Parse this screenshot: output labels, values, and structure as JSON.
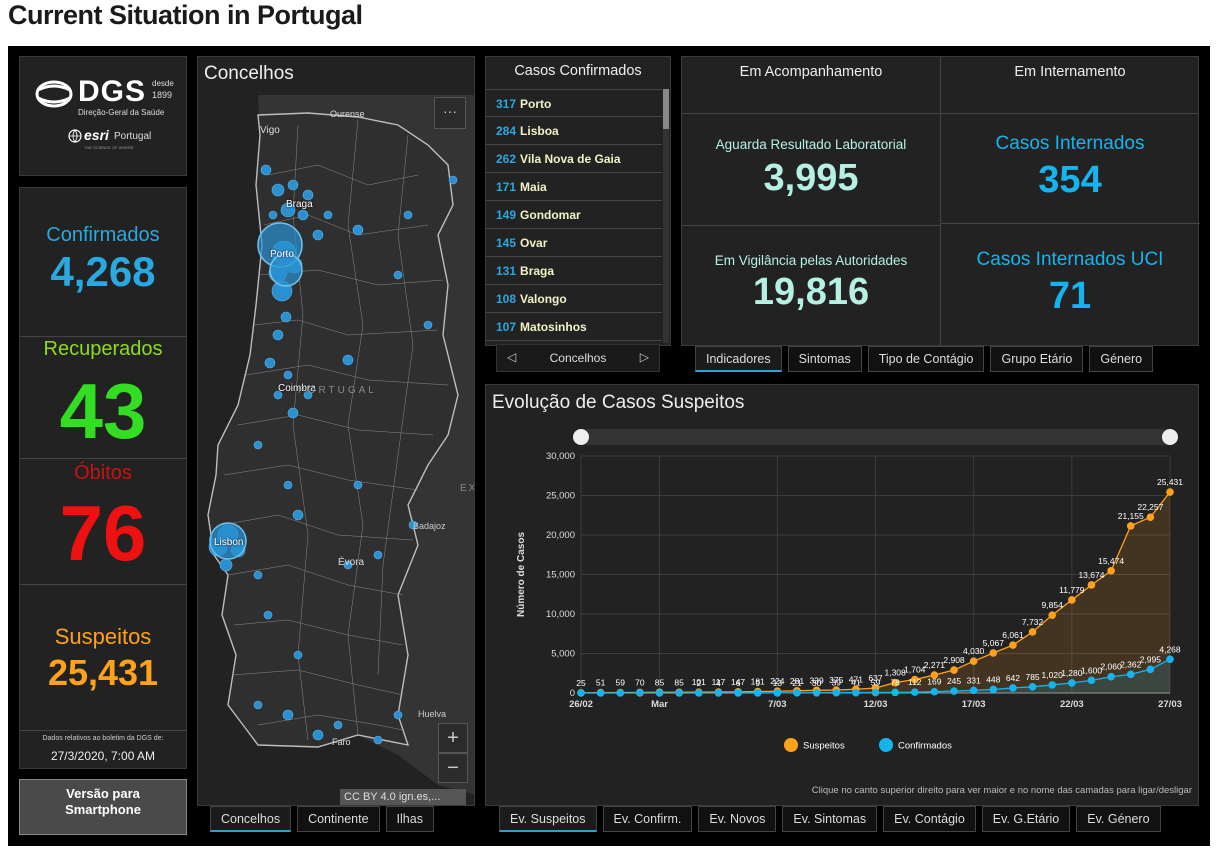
{
  "page": {
    "title": "Current Situation in Portugal"
  },
  "logo": {
    "dgs": "DGS",
    "desde": "desde",
    "year": "1899",
    "subtitle": "Direção-Geral da Saúde",
    "esri": "esri",
    "esri_region": "Portugal",
    "esri_tagline": "THE SCIENCE OF WHERE"
  },
  "left": {
    "confirmados_label": "Confirmados",
    "confirmados_value": "4,268",
    "recuperados_label": "Recuperados",
    "recuperados_value": "43",
    "obitos_label": "Óbitos",
    "obitos_value": "76",
    "suspeitos_label": "Suspeitos",
    "suspeitos_value": "25,431",
    "note": "Dados relativos ao boletim da DGS de:",
    "date": "27/3/2020, 7:00 AM",
    "smartphone_label": "Versão para Smartphone"
  },
  "colors": {
    "blue": "#2aa8e0",
    "green": "#33dd22",
    "red": "#ee1111",
    "orange": "#ffa21a",
    "teal": "#b6f0e4"
  },
  "map": {
    "title": "Concelhos",
    "more_icon": "ellipsis-icon",
    "labels": {
      "ourense": "Ourense",
      "vigo": "Vigo",
      "braga": "Braga",
      "porto": "Porto",
      "coimbra": "Coimbra",
      "portugal": "PORTUGAL",
      "ex": "EX",
      "badajoz": "Badajoz",
      "evora": "Évora",
      "lisbon": "Lisbon",
      "huelva": "Huelva",
      "faro": "Faro"
    },
    "attribution": "CC BY 4.0 ign.es,...",
    "zoom_in": "+",
    "zoom_out": "−",
    "tabs": [
      "Concelhos",
      "Continente",
      "Ilhas"
    ]
  },
  "casos": {
    "title": "Casos Confirmados",
    "items": [
      {
        "count": "317",
        "name": "Porto"
      },
      {
        "count": "284",
        "name": "Lisboa"
      },
      {
        "count": "262",
        "name": "Vila Nova de Gaia"
      },
      {
        "count": "171",
        "name": "Maia"
      },
      {
        "count": "149",
        "name": "Gondomar"
      },
      {
        "count": "145",
        "name": "Ovar"
      },
      {
        "count": "131",
        "name": "Braga"
      },
      {
        "count": "108",
        "name": "Valongo"
      },
      {
        "count": "107",
        "name": "Matosinhos"
      }
    ],
    "nav_label": "Concelhos",
    "prev": "◁",
    "next": "▷"
  },
  "indicadores": {
    "acompanhamento_title": "Em Acompanhamento",
    "internamento_title": "Em Internamento",
    "aguarda_label": "Aguarda Resultado Laboratorial",
    "aguarda_value": "3,995",
    "vigilancia_label": "Em Vigilância pelas Autoridades",
    "vigilancia_value": "19,816",
    "internados_label": "Casos Internados",
    "internados_value": "354",
    "uci_label": "Casos Internados UCI",
    "uci_value": "71",
    "tabs": [
      "Indicadores",
      "Sintomas",
      "Tipo de Contágio",
      "Grupo Etário",
      "Género"
    ]
  },
  "chart_data": {
    "type": "line",
    "title": "Evolução de Casos Suspeitos",
    "ylabel": "Número de Casos",
    "ylim": [
      0,
      30000
    ],
    "yticks": [
      0,
      5000,
      10000,
      15000,
      20000,
      25000,
      30000
    ],
    "ytick_labels": [
      "0",
      "5,000",
      "10,000",
      "15,000",
      "20,000",
      "25,000",
      "30,000"
    ],
    "x": [
      "26/02",
      "27/02",
      "28/02",
      "29/02",
      "01/03",
      "02/03",
      "03/03",
      "04/03",
      "05/03",
      "06/03",
      "07/03",
      "08/03",
      "09/03",
      "10/03",
      "11/03",
      "12/03",
      "13/03",
      "14/03",
      "15/03",
      "16/03",
      "17/03",
      "18/03",
      "19/03",
      "20/03",
      "21/03",
      "22/03",
      "23/03",
      "24/03",
      "25/03",
      "26/03",
      "27/03"
    ],
    "xtick_labels": [
      {
        "i": 0,
        "label": "26/02"
      },
      {
        "i": 4,
        "label": "Mar"
      },
      {
        "i": 10,
        "label": "7/03"
      },
      {
        "i": 15,
        "label": "12/03"
      },
      {
        "i": 20,
        "label": "17/03"
      },
      {
        "i": 25,
        "label": "22/03"
      },
      {
        "i": 30,
        "label": "27/03"
      }
    ],
    "series": [
      {
        "name": "Suspeitos",
        "color": "#ffa21a",
        "values": [
          25,
          51,
          59,
          70,
          85,
          85,
          101,
          117,
          147,
          181,
          224,
          281,
          339,
          375,
          471,
          637,
          1308,
          1704,
          2271,
          2908,
          4030,
          5067,
          6061,
          7732,
          9854,
          11779,
          13674,
          15474,
          21155,
          22257,
          25431
        ],
        "labels": [
          "25",
          "51",
          "59",
          "70",
          "85",
          "85",
          "101",
          "117",
          "147",
          "181",
          "224",
          "281",
          "339",
          "375",
          "471",
          "637",
          "1,308",
          "1,704",
          "2,271",
          "2,908",
          "4,030",
          "5,067",
          "6,061",
          "7,732",
          "9,854",
          "11,779",
          "13,674",
          "15,474",
          "21,155",
          "22,257",
          "25,431"
        ]
      },
      {
        "name": "Confirmados",
        "color": "#16b4ee",
        "values": [
          0,
          0,
          0,
          0,
          0,
          0,
          2,
          4,
          6,
          9,
          13,
          21,
          30,
          39,
          41,
          59,
          78,
          112,
          169,
          245,
          331,
          448,
          642,
          785,
          1020,
          1280,
          1600,
          2060,
          2362,
          2995,
          4268
        ],
        "labels": [
          "",
          "",
          "",
          "",
          "",
          "",
          "2",
          "4",
          "6",
          "9",
          "13",
          "21",
          "30",
          "39",
          "41",
          "59",
          "78",
          "112",
          "169",
          "245",
          "331",
          "448",
          "642",
          "785",
          "1,020",
          "1,280",
          "1,600",
          "2,060",
          "2,362",
          "2,995",
          "4,268"
        ]
      }
    ],
    "legend": [
      "Suspeitos",
      "Confirmados"
    ],
    "footer": "Clique no canto superior direito para ver maior e no nome das camadas para ligar/desligar",
    "tabs": [
      "Ev. Suspeitos",
      "Ev. Confirm.",
      "Ev. Novos",
      "Ev. Sintomas",
      "Ev. Contágio",
      "Ev. G.Etário",
      "Ev. Género"
    ]
  }
}
